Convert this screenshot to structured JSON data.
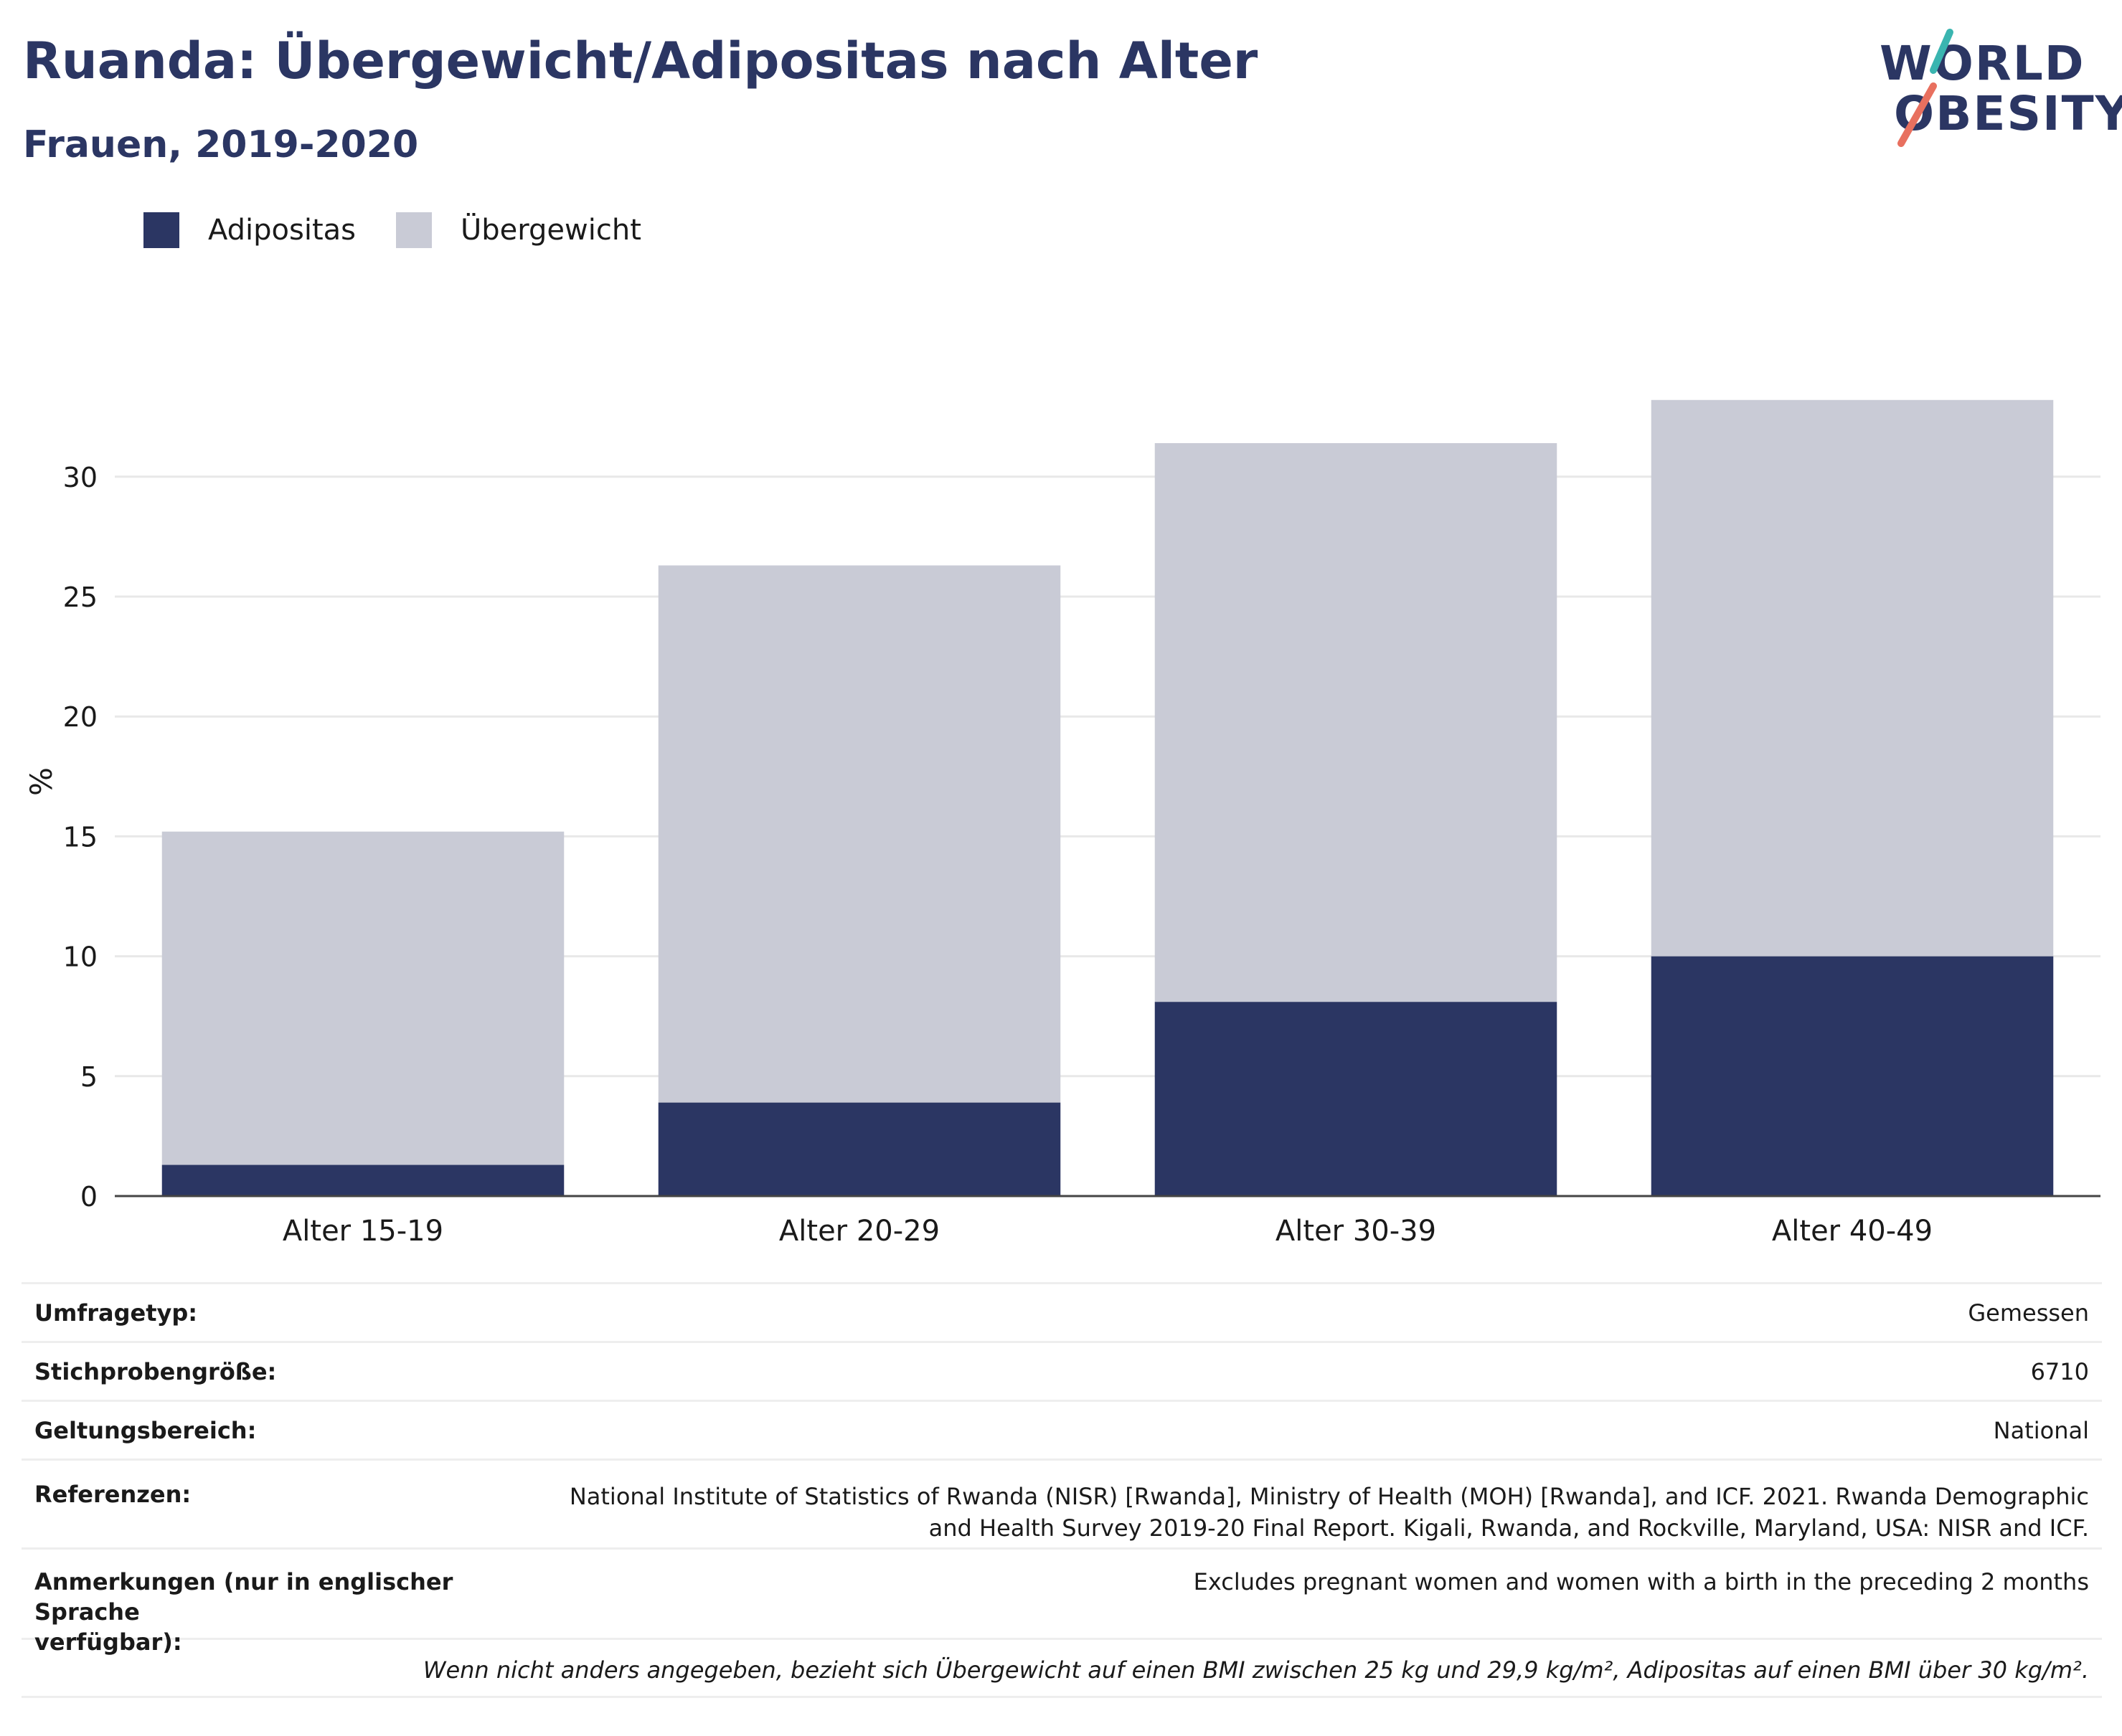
{
  "header": {
    "title": "Ruanda: Übergewicht/Adipositas nach Alter",
    "subtitle": "Frauen, 2019-2020"
  },
  "logo": {
    "line1": "WORLD",
    "line2": "OBESITY",
    "accent_teal": "#3ab5b0",
    "accent_coral": "#e8705f"
  },
  "legend": [
    {
      "label": "Adipositas",
      "color": "#2b3663"
    },
    {
      "label": "Übergewicht",
      "color": "#c9cbd6"
    }
  ],
  "chart_data": {
    "type": "bar",
    "stacked": true,
    "categories": [
      "Alter 15-19",
      "Alter 20-29",
      "Alter 30-39",
      "Alter 40-49"
    ],
    "series": [
      {
        "name": "Adipositas",
        "values": [
          1.3,
          3.9,
          8.1,
          10.0
        ],
        "color": "#2b3663"
      },
      {
        "name": "Übergewicht",
        "values": [
          13.9,
          22.4,
          23.3,
          23.2
        ],
        "color": "#c9cbd6"
      }
    ],
    "ylabel": "%",
    "ylim": [
      0,
      36
    ],
    "yticks": [
      "0",
      "5",
      "10",
      "15",
      "20",
      "25",
      "30"
    ],
    "grid": true,
    "legend_position": "top-left"
  },
  "info": [
    {
      "key": "Umfragetyp:",
      "value": "Gemessen"
    },
    {
      "key": "Stichprobengröße:",
      "value": "6710"
    },
    {
      "key": "Geltungsbereich:",
      "value": "National"
    },
    {
      "key": "Referenzen:",
      "value_lines": [
        "National Institute of Statistics of Rwanda (NISR) [Rwanda], Ministry of Health (MOH) [Rwanda], and ICF. 2021. Rwanda Demographic",
        "and Health Survey 2019-20 Final Report. Kigali, Rwanda, and Rockville, Maryland, USA: NISR and ICF."
      ]
    },
    {
      "key_lines": [
        "Anmerkungen (nur in englischer Sprache",
        "verfügbar):"
      ],
      "value": "Excludes pregnant women and women with a birth in the preceding 2 months"
    }
  ],
  "footnote": "Wenn nicht anders angegeben, bezieht sich Übergewicht auf einen BMI zwischen 25 kg und 29,9 kg/m², Adipositas auf einen BMI über 30 kg/m²."
}
